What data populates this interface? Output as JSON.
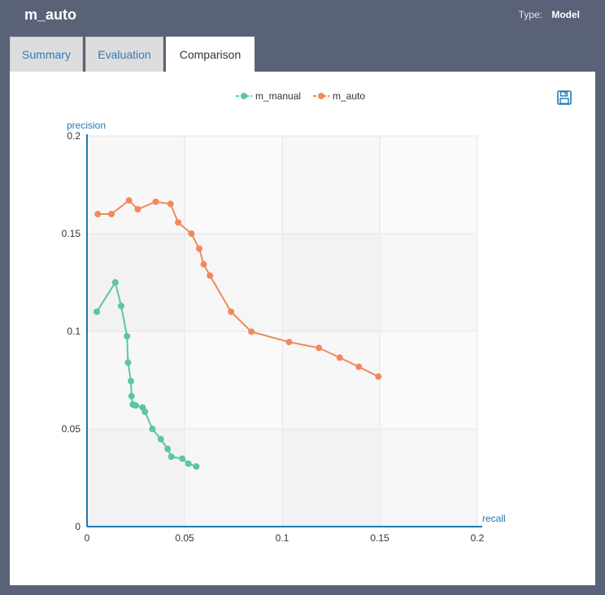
{
  "header": {
    "title": "m_auto",
    "type_label": "Type:",
    "type_value": "Model"
  },
  "tabs": [
    {
      "label": "Summary",
      "active": false
    },
    {
      "label": "Evaluation",
      "active": false
    },
    {
      "label": "Comparison",
      "active": true
    }
  ],
  "toolbar": {
    "save_icon": "floppy-disk-save-icon"
  },
  "colors": {
    "background": "#5a6277",
    "m_manual": "#5cc6a0",
    "m_auto": "#f08a5d",
    "axis": "#1f78b4",
    "tab_link": "#337ab7"
  },
  "chart_data": {
    "type": "line",
    "xlabel": "recall",
    "ylabel": "precision",
    "xlim": [
      0,
      0.2
    ],
    "ylim": [
      0,
      0.2
    ],
    "x_ticks": [
      "0",
      "0.05",
      "0.1",
      "0.15",
      "0.2"
    ],
    "y_ticks": [
      "0",
      "0.05",
      "0.1",
      "0.15",
      "0.2"
    ],
    "legend_position": "top-center",
    "grid": true,
    "series": [
      {
        "name": "m_manual",
        "color": "#5cc6a0",
        "points": [
          [
            0.005,
            0.11
          ],
          [
            0.0145,
            0.125
          ],
          [
            0.0175,
            0.113
          ],
          [
            0.0205,
            0.0975
          ],
          [
            0.021,
            0.084
          ],
          [
            0.0225,
            0.0745
          ],
          [
            0.0228,
            0.0668
          ],
          [
            0.0235,
            0.0625
          ],
          [
            0.025,
            0.062
          ],
          [
            0.0285,
            0.061
          ],
          [
            0.0297,
            0.0588
          ],
          [
            0.0335,
            0.05
          ],
          [
            0.0378,
            0.0448
          ],
          [
            0.0413,
            0.0398
          ],
          [
            0.0432,
            0.0358
          ],
          [
            0.0488,
            0.0348
          ],
          [
            0.052,
            0.0322
          ],
          [
            0.056,
            0.0308
          ]
        ]
      },
      {
        "name": "m_auto",
        "color": "#f08a5d",
        "points": [
          [
            0.0055,
            0.16
          ],
          [
            0.0125,
            0.16
          ],
          [
            0.0215,
            0.167
          ],
          [
            0.026,
            0.1625
          ],
          [
            0.0352,
            0.1663
          ],
          [
            0.0428,
            0.1652
          ],
          [
            0.0467,
            0.1557
          ],
          [
            0.0535,
            0.15
          ],
          [
            0.0575,
            0.1423
          ],
          [
            0.0598,
            0.1343
          ],
          [
            0.063,
            0.1285
          ],
          [
            0.0738,
            0.11
          ],
          [
            0.0842,
            0.0998
          ],
          [
            0.1035,
            0.0945
          ],
          [
            0.1188,
            0.0915
          ],
          [
            0.1295,
            0.0865
          ],
          [
            0.1393,
            0.0818
          ],
          [
            0.1493,
            0.0768
          ]
        ]
      }
    ]
  }
}
